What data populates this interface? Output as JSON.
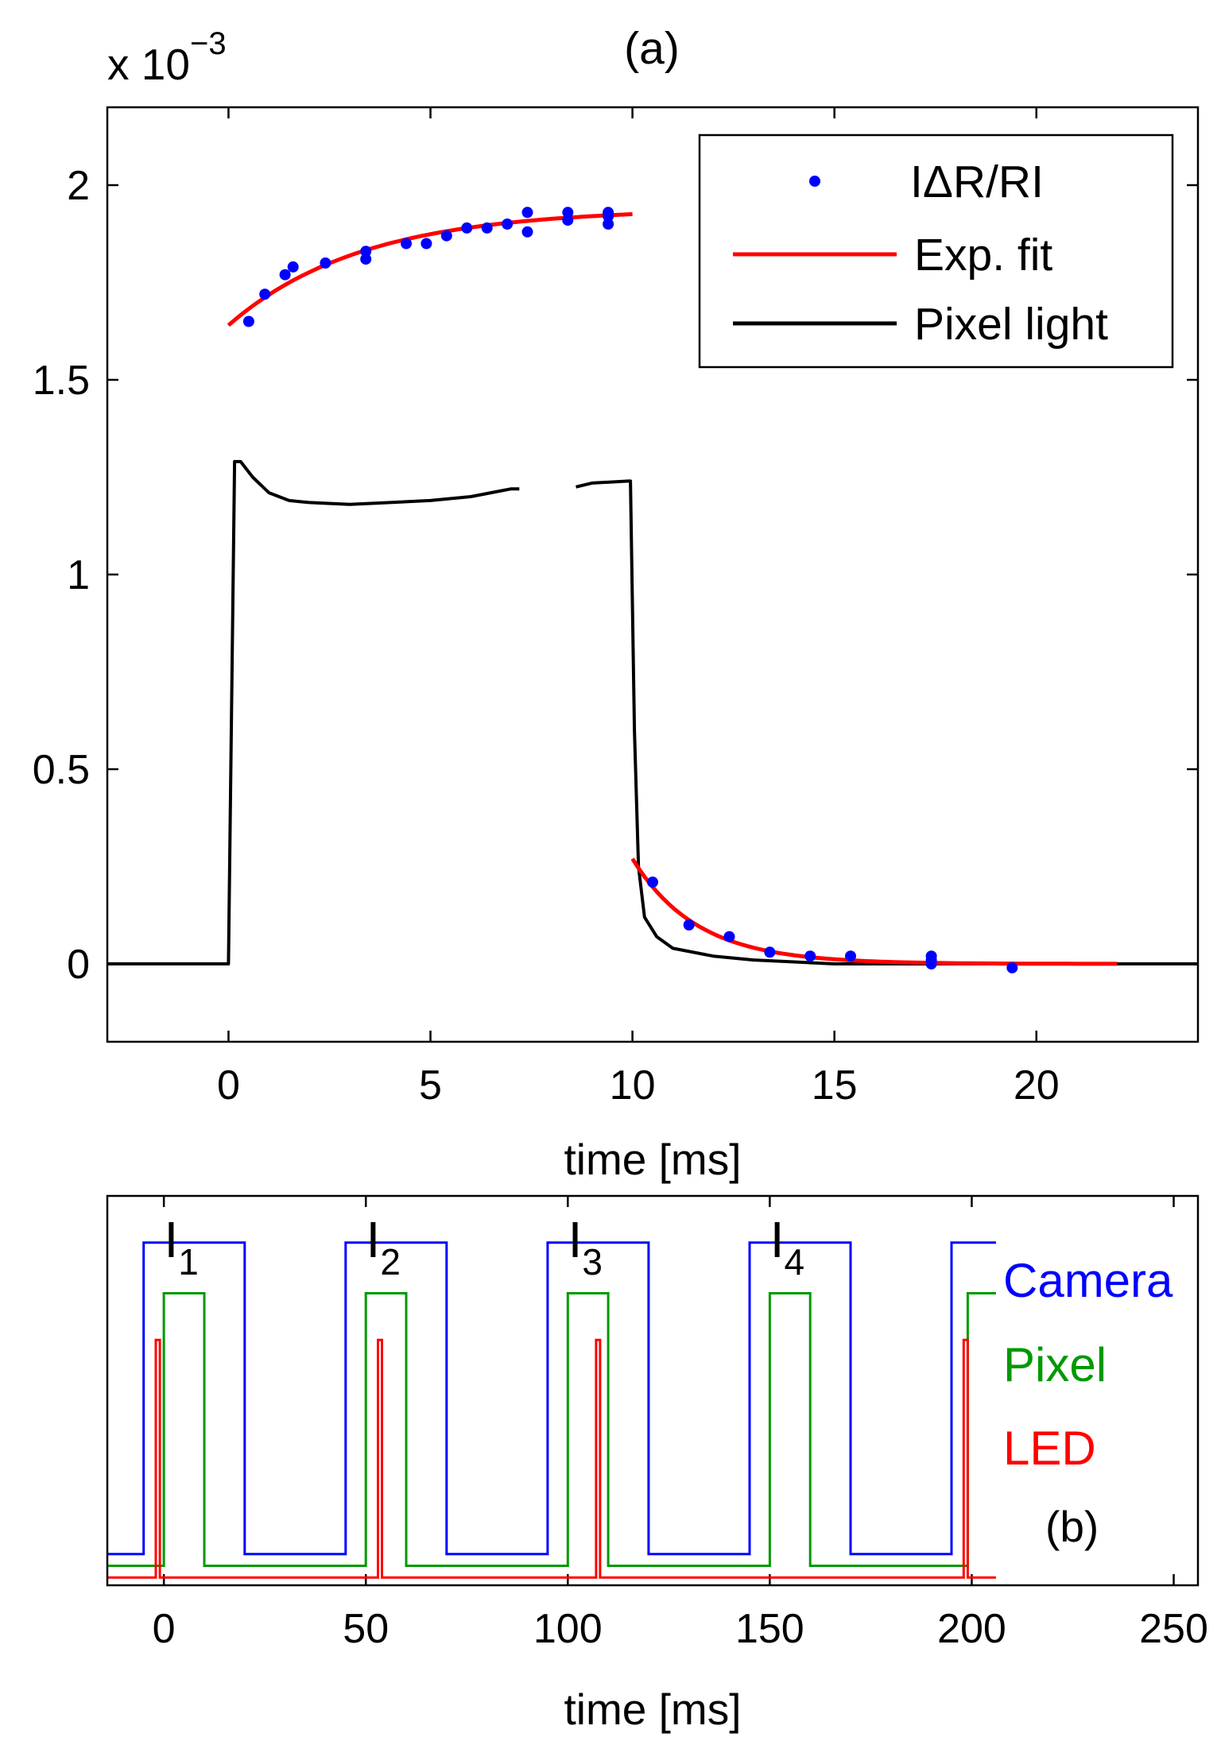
{
  "chart_data": [
    {
      "type": "line",
      "panel_label": "(a)",
      "scale_label": {
        "base": "x 10",
        "exponent": "−3"
      },
      "xlabel": "time [ms]",
      "ylabel": "",
      "xlim": [
        -3,
        24
      ],
      "ylim": [
        -0.2,
        2.2
      ],
      "xticks": [
        0,
        5,
        10,
        15,
        20
      ],
      "yticks": [
        0,
        0.5,
        1,
        1.5,
        2
      ],
      "xtick_labels": [
        "0",
        "5",
        "10",
        "15",
        "20"
      ],
      "ytick_labels": [
        "0",
        "0.5",
        "1",
        "1.5",
        "2"
      ],
      "legend": {
        "position": "top-right",
        "entries": [
          "IΔR/RI",
          "Exp. fit",
          "Pixel light"
        ]
      },
      "series": [
        {
          "name": "IΔR/RI",
          "style": "dots",
          "color": "#0000ff",
          "points": [
            [
              0.5,
              1.65
            ],
            [
              0.9,
              1.72
            ],
            [
              1.4,
              1.77
            ],
            [
              1.6,
              1.79
            ],
            [
              2.4,
              1.8
            ],
            [
              3.4,
              1.81
            ],
            [
              3.4,
              1.83
            ],
            [
              4.4,
              1.85
            ],
            [
              4.9,
              1.85
            ],
            [
              5.4,
              1.87
            ],
            [
              5.9,
              1.89
            ],
            [
              6.4,
              1.89
            ],
            [
              6.9,
              1.9
            ],
            [
              7.4,
              1.88
            ],
            [
              7.4,
              1.93
            ],
            [
              8.4,
              1.91
            ],
            [
              8.4,
              1.93
            ],
            [
              9.4,
              1.9
            ],
            [
              9.4,
              1.92
            ],
            [
              9.4,
              1.93
            ],
            [
              10.5,
              0.21
            ],
            [
              11.4,
              0.1
            ],
            [
              12.4,
              0.07
            ],
            [
              13.4,
              0.03
            ],
            [
              14.4,
              0.02
            ],
            [
              15.4,
              0.02
            ],
            [
              17.4,
              0.0
            ],
            [
              17.4,
              0.01
            ],
            [
              17.4,
              0.02
            ],
            [
              19.4,
              -0.01
            ]
          ]
        },
        {
          "name": "Exp. fit",
          "style": "line",
          "color": "#ff0000",
          "segments": [
            {
              "model": "rise",
              "x_start": 0,
              "x_end": 10,
              "y0": 1.64,
              "y_inf": 1.94,
              "tau_ms": 3.3
            },
            {
              "model": "decay",
              "x_start": 10,
              "x_end": 22,
              "y0": 0.27,
              "y_inf": 0.0,
              "tau_ms": 1.6
            }
          ]
        },
        {
          "name": "Pixel light",
          "style": "line",
          "color": "#000000",
          "points": [
            [
              -3,
              0.0
            ],
            [
              0.0,
              0.0
            ],
            [
              0.15,
              1.29
            ],
            [
              0.3,
              1.29
            ],
            [
              0.6,
              1.25
            ],
            [
              1.0,
              1.21
            ],
            [
              1.5,
              1.19
            ],
            [
              2.0,
              1.185
            ],
            [
              3.0,
              1.18
            ],
            [
              4.0,
              1.185
            ],
            [
              5.0,
              1.19
            ],
            [
              6.0,
              1.2
            ],
            [
              7.0,
              1.22
            ],
            [
              7.2,
              1.22
            ],
            null,
            [
              8.6,
              1.225
            ],
            [
              9.0,
              1.235
            ],
            [
              9.9,
              1.24
            ],
            [
              9.95,
              1.24
            ],
            [
              10.05,
              0.6
            ],
            [
              10.15,
              0.25
            ],
            [
              10.3,
              0.12
            ],
            [
              10.6,
              0.07
            ],
            [
              11.0,
              0.04
            ],
            [
              12.0,
              0.02
            ],
            [
              13.0,
              0.01
            ],
            [
              14.0,
              0.005
            ],
            [
              15.0,
              0.0
            ],
            [
              24,
              0.0
            ]
          ]
        }
      ]
    },
    {
      "type": "line",
      "panel_label": "(b)",
      "xlabel": "time [ms]",
      "xlim": [
        -14,
        256
      ],
      "xticks": [
        0,
        50,
        100,
        150,
        200,
        250
      ],
      "xtick_labels": [
        "0",
        "50",
        "100",
        "150",
        "200",
        "250"
      ],
      "series": [
        {
          "name": "Camera",
          "color": "#0000ff",
          "low_level": 0.08,
          "high_level": 0.88,
          "x_end": 206,
          "pulses": [
            [
              -5,
              20
            ],
            [
              45,
              70
            ],
            [
              95,
              120
            ],
            [
              145,
              170
            ],
            [
              195,
              206
            ]
          ]
        },
        {
          "name": "Pixel",
          "color": "#009900",
          "low_level": 0.05,
          "high_level": 0.75,
          "x_end": 206,
          "pulses": [
            [
              0,
              10
            ],
            [
              50,
              60
            ],
            [
              100,
              110
            ],
            [
              150,
              160
            ],
            [
              199,
              206
            ]
          ]
        },
        {
          "name": "LED",
          "color": "#ff0000",
          "low_level": 0.02,
          "high_level": 0.63,
          "x_end": 206,
          "pulses": [
            [
              -2,
              -1
            ],
            [
              53,
              54
            ],
            [
              107,
              108
            ],
            [
              198,
              199
            ]
          ]
        }
      ],
      "interval_labels": [
        {
          "letter": "I",
          "sub": "1",
          "x": 4
        },
        {
          "letter": "I",
          "sub": "2",
          "x": 54
        },
        {
          "letter": "I",
          "sub": "3",
          "x": 104
        },
        {
          "letter": "I",
          "sub": "4",
          "x": 154
        }
      ]
    }
  ]
}
